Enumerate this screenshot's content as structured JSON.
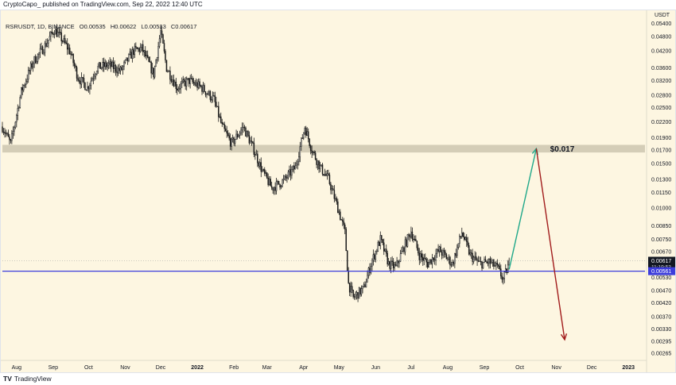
{
  "header": {
    "published_by": "CryptoCapo_ published on TradingView.com, Sep 22, 2022 12:40 UTC",
    "symbol": "RSRUSDT, 1D, BINANCE",
    "open": "O0.00535",
    "high": "H0.00622",
    "low": "L0.00533",
    "close": "C0.00617"
  },
  "footer": {
    "logo_mark": "TV",
    "logo_text": "TradingView"
  },
  "colors": {
    "background": "#fdf6e1",
    "candle": "#1c1c1c",
    "support_line": "#3d3ddb",
    "resistance_zone": "#cfc9b3",
    "up_arrow": "#20a88a",
    "down_arrow": "#a11b1b",
    "price_badge": "#131722",
    "support_badge": "#3d3ddb"
  },
  "chart_data": {
    "type": "candlestick",
    "symbol": "RSRUSDT",
    "timeframe": "1D",
    "exchange": "BINANCE",
    "y_unit": "USDT",
    "y_scale": "log",
    "ylim": [
      0.0025,
      0.06
    ],
    "y_ticks": [
      "0.05400",
      "0.04800",
      "0.04200",
      "0.03600",
      "0.03200",
      "0.02800",
      "0.02500",
      "0.02200",
      "0.01900",
      "0.01700",
      "0.01500",
      "0.01300",
      "0.01150",
      "0.01000",
      "0.00850",
      "0.00750",
      "0.00670",
      "0.00590",
      "0.00530",
      "0.00470",
      "0.00420",
      "0.00370",
      "0.00330",
      "0.00295",
      "0.00265"
    ],
    "x_ticks": [
      "Aug",
      "Sep",
      "Oct",
      "Nov",
      "Dec",
      "2022",
      "Feb",
      "Mar",
      "Apr",
      "May",
      "Jun",
      "Jul",
      "Aug",
      "Sep",
      "Oct",
      "Nov",
      "Dec",
      "2023"
    ],
    "x_range": [
      "2021-07-20",
      "2023-01-15"
    ],
    "last_price": "0.00617",
    "countdown": "11:19:53",
    "support_label": "0.00561",
    "support_level": 0.00561,
    "resistance_zone": [
      0.0166,
      0.0178
    ],
    "resistance_label": "$0.017",
    "projection": {
      "start": {
        "date": "2022-09-22",
        "price": 0.0057
      },
      "up_target": {
        "date": "2022-10-15",
        "price": 0.0172
      },
      "down_target": {
        "date": "2022-11-08",
        "price": 0.003
      }
    },
    "price_path": [
      [
        "2021-07-20",
        0.021
      ],
      [
        "2021-07-27",
        0.018
      ],
      [
        "2021-08-05",
        0.029
      ],
      [
        "2021-08-15",
        0.038
      ],
      [
        "2021-08-25",
        0.044
      ],
      [
        "2021-09-02",
        0.051
      ],
      [
        "2021-09-08",
        0.047
      ],
      [
        "2021-09-15",
        0.042
      ],
      [
        "2021-09-22",
        0.033
      ],
      [
        "2021-09-30",
        0.03
      ],
      [
        "2021-10-08",
        0.036
      ],
      [
        "2021-10-18",
        0.037
      ],
      [
        "2021-10-28",
        0.035
      ],
      [
        "2021-11-08",
        0.042
      ],
      [
        "2021-11-15",
        0.043
      ],
      [
        "2021-11-25",
        0.034
      ],
      [
        "2021-12-01",
        0.05
      ],
      [
        "2021-12-06",
        0.036
      ],
      [
        "2021-12-15",
        0.03
      ],
      [
        "2021-12-25",
        0.032
      ],
      [
        "2022-01-05",
        0.03
      ],
      [
        "2022-01-15",
        0.027
      ],
      [
        "2022-01-22",
        0.021
      ],
      [
        "2022-01-30",
        0.018
      ],
      [
        "2022-02-09",
        0.021
      ],
      [
        "2022-02-18",
        0.017
      ],
      [
        "2022-02-25",
        0.014
      ],
      [
        "2022-03-05",
        0.012
      ],
      [
        "2022-03-15",
        0.0128
      ],
      [
        "2022-03-25",
        0.0145
      ],
      [
        "2022-04-02",
        0.021
      ],
      [
        "2022-04-08",
        0.017
      ],
      [
        "2022-04-15",
        0.0145
      ],
      [
        "2022-04-22",
        0.013
      ],
      [
        "2022-04-30",
        0.01
      ],
      [
        "2022-05-06",
        0.008
      ],
      [
        "2022-05-09",
        0.005
      ],
      [
        "2022-05-13",
        0.0044
      ],
      [
        "2022-05-22",
        0.0048
      ],
      [
        "2022-05-28",
        0.006
      ],
      [
        "2022-06-05",
        0.0075
      ],
      [
        "2022-06-12",
        0.006
      ],
      [
        "2022-06-18",
        0.0058
      ],
      [
        "2022-06-25",
        0.007
      ],
      [
        "2022-07-01",
        0.0081
      ],
      [
        "2022-07-08",
        0.0065
      ],
      [
        "2022-07-15",
        0.006
      ],
      [
        "2022-07-25",
        0.0068
      ],
      [
        "2022-08-05",
        0.006
      ],
      [
        "2022-08-13",
        0.008
      ],
      [
        "2022-08-20",
        0.0065
      ],
      [
        "2022-08-28",
        0.006
      ],
      [
        "2022-09-05",
        0.0061
      ],
      [
        "2022-09-12",
        0.0058
      ],
      [
        "2022-09-17",
        0.0052
      ],
      [
        "2022-09-22",
        0.006
      ]
    ]
  }
}
